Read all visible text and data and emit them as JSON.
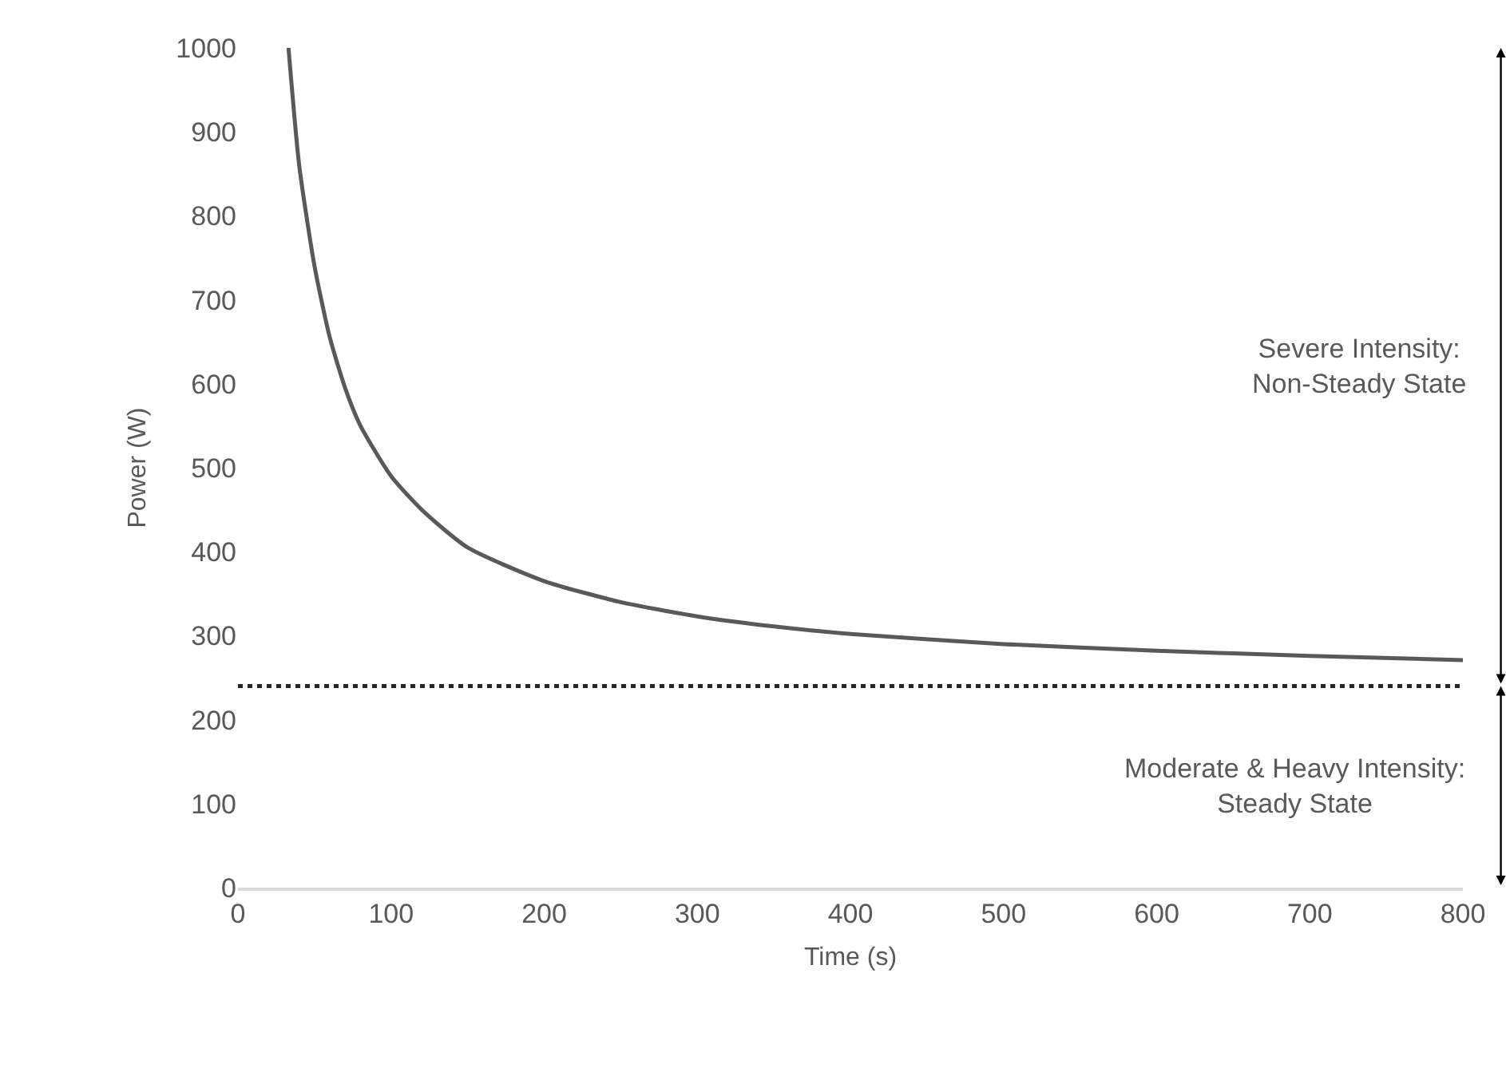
{
  "chart_data": {
    "type": "line",
    "xlabel": "Time (s)",
    "ylabel": "Power (W)",
    "x": [
      33,
      40,
      50,
      60,
      70,
      80,
      100,
      120,
      150,
      200,
      250,
      300,
      350,
      400,
      500,
      600,
      700,
      800
    ],
    "series": [
      {
        "color": "#595959",
        "values": [
          1000,
          860,
          740,
          655,
          595,
          550,
          490,
          450,
          405,
          365,
          340,
          323,
          311,
          302,
          290,
          282,
          276,
          271
        ]
      }
    ],
    "xlim": [
      0,
      800
    ],
    "ylim": [
      0,
      1000
    ],
    "xticks": [
      0,
      100,
      200,
      300,
      400,
      500,
      600,
      700,
      800
    ],
    "yticks": [
      0,
      100,
      200,
      300,
      400,
      500,
      600,
      700,
      800,
      900,
      1000
    ],
    "ref_lines": [
      {
        "axis": "y",
        "value": 240,
        "color": "#262626",
        "line_style": "dotted"
      }
    ],
    "annotations": [
      "Severe Intensity:\nNon-Steady State",
      "Moderate & Heavy Intensity:\nSteady State"
    ]
  }
}
